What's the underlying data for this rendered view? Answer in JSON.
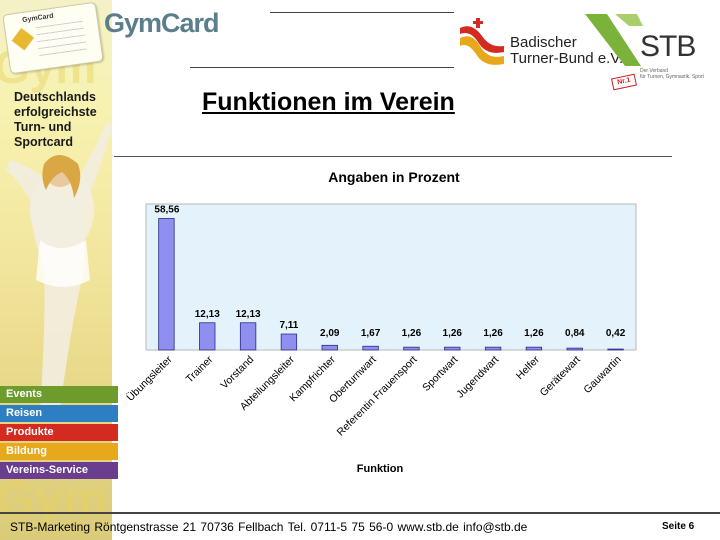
{
  "brand": {
    "gymcard_logo": "GymCard",
    "gymcard_card_head": "GymCard",
    "tagline": "Deutschlands\nerfolgreichste\nTurn- und\nSportcard",
    "btb_name": "Badischer\nTurner-Bund e.V.",
    "stb_name": "STB",
    "stb_claim": "Der Verband\nfür Turnen, Gymnastik, Sport",
    "stb_badge": "Nr.1"
  },
  "menu": {
    "items": [
      {
        "label": "Events",
        "color": "#6e9c2c"
      },
      {
        "label": "Reisen",
        "color": "#2e7fc1"
      },
      {
        "label": "Produkte",
        "color": "#d42a1f"
      },
      {
        "label": "Bildung",
        "color": "#e8a81c"
      },
      {
        "label": "Vereins-Service",
        "color": "#6b3d8f"
      }
    ]
  },
  "page": {
    "title": "Funktionen im Verein"
  },
  "chart_data": {
    "type": "bar",
    "title": "Angaben in Prozent",
    "xlabel": "Funktion",
    "ylabel": "",
    "categories": [
      "Übungsleiter",
      "Trainer",
      "Vorstand",
      "Abteilungsleiter",
      "Kampfrichter",
      "Oberturnwart",
      "Referentin Frauensport",
      "Sportwart",
      "Jugendwart",
      "Helfer",
      "Gerätewart",
      "Gauwartin"
    ],
    "values": [
      58.56,
      12.13,
      12.13,
      7.11,
      2.09,
      1.67,
      1.26,
      1.26,
      1.26,
      1.26,
      0.84,
      0.42
    ],
    "value_labels": [
      "58,56",
      "12,13",
      "12,13",
      "7,11",
      "2,09",
      "1,67",
      "1,26",
      "1,26",
      "1,26",
      "1,26",
      "0,84",
      "0,42"
    ],
    "ylim": [
      0,
      65
    ],
    "grid": false,
    "legend": "none",
    "colors": {
      "bar": "#8f8ff0",
      "bar_edge": "#2b2b88",
      "plot_bg": "#e4f3fb",
      "plot_border": "#b9b9b9"
    }
  },
  "footer": {
    "text": "STB-Marketing   Röntgenstrasse 21   70736 Fellbach   Tel. 0711-5 75 56-0   www.stb.de   info@stb.de",
    "page_number": "Seite 6"
  }
}
